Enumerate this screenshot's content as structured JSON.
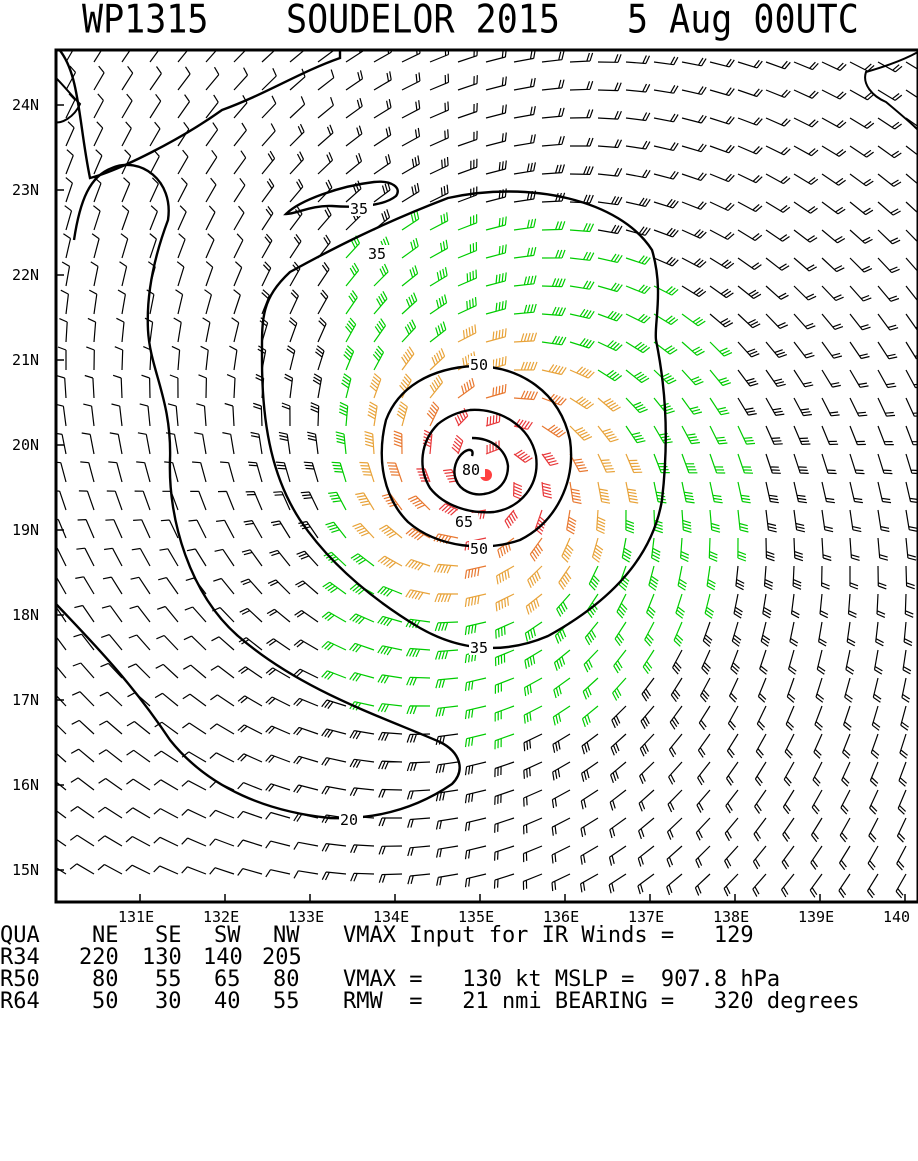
{
  "title": {
    "storm_id": "WP1315",
    "storm_name": "SOUDELOR 2015",
    "time": "5 Aug 00UTC"
  },
  "map": {
    "lat_labels": [
      "24N",
      "23N",
      "22N",
      "21N",
      "20N",
      "19N",
      "18N",
      "17N",
      "16N",
      "15N"
    ],
    "lon_labels": [
      "131E",
      "132E",
      "133E",
      "134E",
      "135E",
      "136E",
      "137E",
      "138E",
      "139E",
      "140"
    ],
    "contour_labels": [
      "35",
      "35",
      "50",
      "65",
      "80",
      "50",
      "35",
      "20"
    ],
    "center": {
      "lat": 19.65,
      "lon": 135.1
    },
    "colors": {
      "lt_34kt": "#000000",
      "gale_34_49kt": "#00cc00",
      "storm_50_63kt": "#e8a33a",
      "hurricane_64_79kt": "#e87830",
      "strong_80kt": "#e8383a",
      "center_dot": "#ff4040",
      "contour": "#000000"
    }
  },
  "footer": {
    "header_row": {
      "qua": "QUA",
      "ne": "NE",
      "se": "SE",
      "sw": "SW",
      "nw": "NW",
      "text": "VMAX Input for IR Winds =   129"
    },
    "r34": {
      "label": "R34",
      "ne": "220",
      "se": "130",
      "sw": "140",
      "nw": "205"
    },
    "r50": {
      "label": "R50",
      "ne": "80",
      "se": "55",
      "sw": "65",
      "nw": "80",
      "text": "VMAX =   130 kt MSLP =  907.8 hPa"
    },
    "r64": {
      "label": "R64",
      "ne": "50",
      "se": "30",
      "sw": "40",
      "nw": "55",
      "text": "RMW  =   21 nmi BEARING =   320 degrees"
    }
  }
}
